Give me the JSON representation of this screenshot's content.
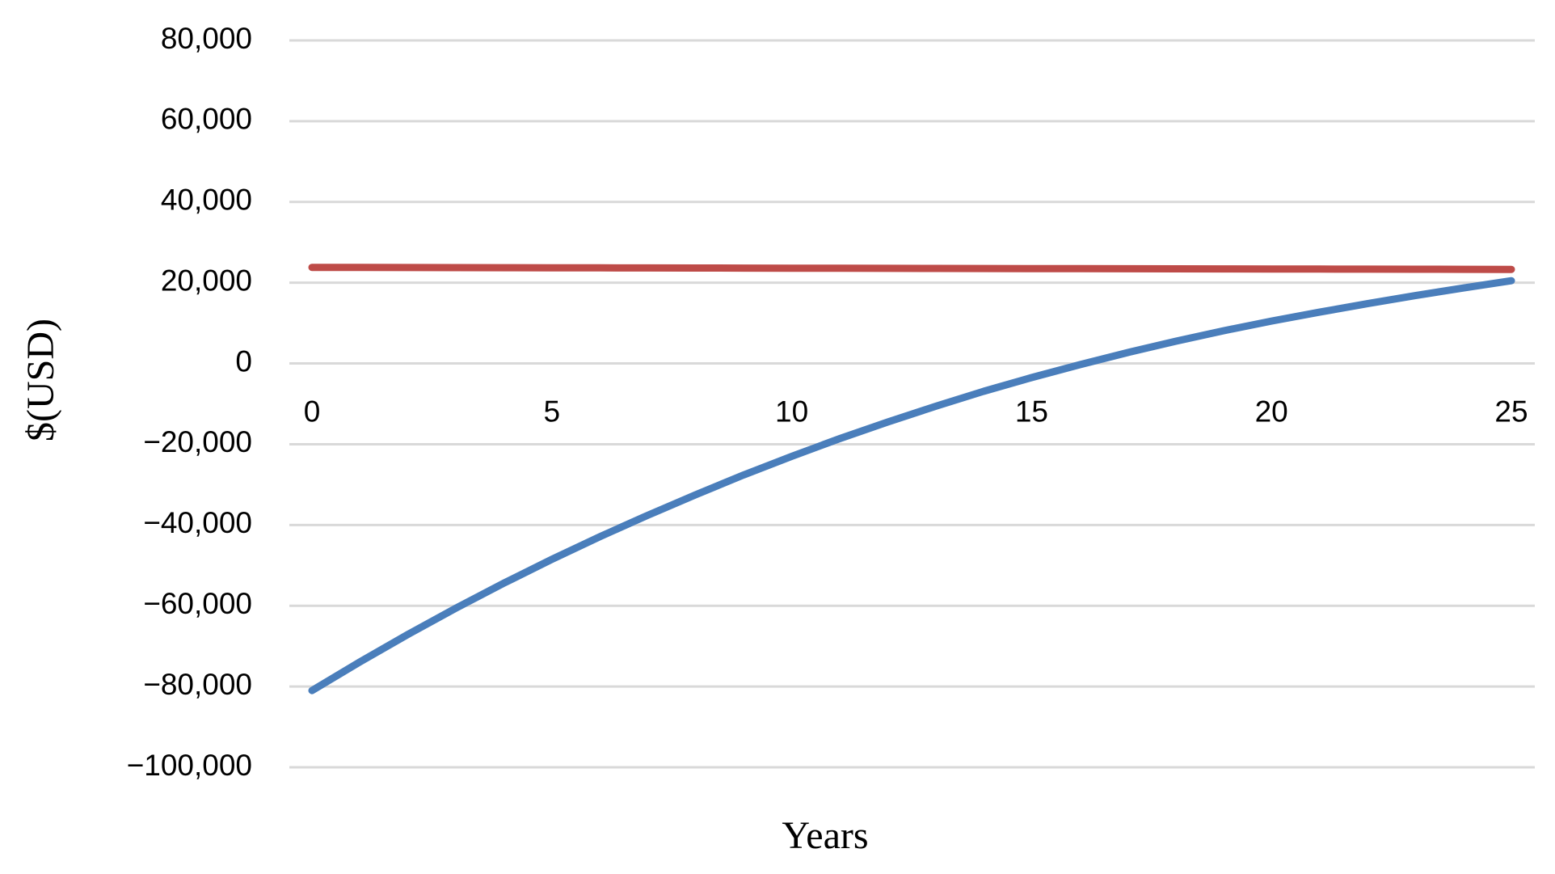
{
  "chart_data": {
    "type": "line",
    "xlabel": "Years",
    "ylabel": "$(USD)",
    "x": [
      0,
      1,
      2,
      3,
      4,
      5,
      6,
      7,
      8,
      9,
      10,
      11,
      12,
      13,
      14,
      15,
      16,
      17,
      18,
      19,
      20,
      21,
      22,
      23,
      24,
      25
    ],
    "series": [
      {
        "color": "#be4b48",
        "values": [
          23800,
          23780,
          23760,
          23740,
          23720,
          23700,
          23680,
          23660,
          23640,
          23620,
          23600,
          23580,
          23560,
          23540,
          23520,
          23500,
          23480,
          23460,
          23440,
          23420,
          23400,
          23380,
          23360,
          23340,
          23320,
          23300
        ]
      },
      {
        "color": "#4a7ebb",
        "values": [
          -81000,
          -73900,
          -67100,
          -60600,
          -54400,
          -48500,
          -42900,
          -37600,
          -32500,
          -27600,
          -23000,
          -18600,
          -14500,
          -10600,
          -6900,
          -3500,
          -300,
          2700,
          5500,
          8100,
          10500,
          12700,
          14800,
          16800,
          18700,
          20500
        ]
      }
    ],
    "xlim": [
      0,
      25
    ],
    "xticks": [
      0,
      5,
      10,
      15,
      20,
      25
    ],
    "ylim": [
      -100000,
      80000
    ],
    "yticks": [
      {
        "value": -100000,
        "label": "−100,000"
      },
      {
        "value": -80000,
        "label": "−80,000"
      },
      {
        "value": -60000,
        "label": "−60,000"
      },
      {
        "value": -40000,
        "label": "−40,000"
      },
      {
        "value": -20000,
        "label": "−20,000"
      },
      0,
      {
        "value": 20000,
        "label": "20,000"
      },
      {
        "value": 40000,
        "label": "40,000"
      },
      {
        "value": 60000,
        "label": "60,000"
      },
      {
        "value": 80000,
        "label": "80,000"
      }
    ],
    "grid": true
  }
}
